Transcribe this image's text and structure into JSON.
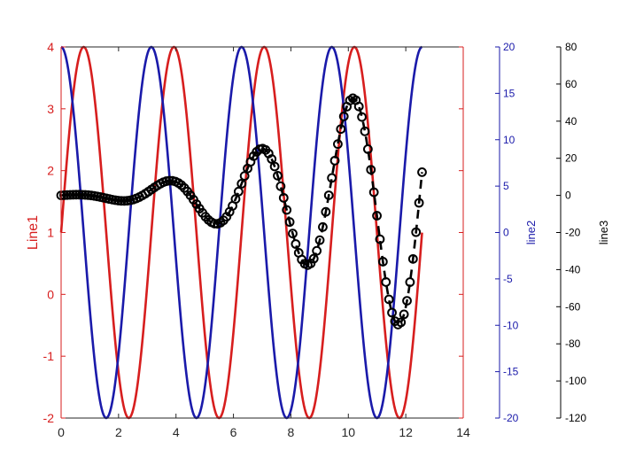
{
  "chart_data": {
    "type": "line",
    "title": "",
    "xlabel": "",
    "xlim": [
      0,
      14
    ],
    "x_ticks": [
      "0",
      "2",
      "4",
      "6",
      "8",
      "10",
      "12",
      "14"
    ],
    "grid": false,
    "legend": "none",
    "axes": [
      {
        "id": "line1",
        "label": "Line1",
        "side": "left",
        "color": "#d71e1e",
        "ylim": [
          -2,
          4
        ],
        "ticks": [
          "-2",
          "-1",
          "0",
          "1",
          "2",
          "3",
          "4"
        ]
      },
      {
        "id": "line2",
        "label": "line2",
        "side": "right",
        "color": "#1a1aaa",
        "ylim": [
          -20,
          20
        ],
        "ticks": [
          "-20",
          "-15",
          "-10",
          "-5",
          "0",
          "5",
          "10",
          "15",
          "20"
        ]
      },
      {
        "id": "line3",
        "label": "line3",
        "side": "right-outer",
        "color": "#000000",
        "ylim": [
          -120,
          80
        ],
        "ticks": [
          "-120",
          "-100",
          "-80",
          "-60",
          "-40",
          "-20",
          "0",
          "20",
          "40",
          "60",
          "80"
        ]
      }
    ],
    "series": [
      {
        "axis": "line1",
        "color": "#d71e1e",
        "style": "solid",
        "formula": "y = 1 + 3*sin(2x)",
        "x_range": [
          0,
          12.566
        ]
      },
      {
        "axis": "line2",
        "color": "#1a1aaa",
        "style": "solid",
        "formula": "y = 20*cos(2x)",
        "x_range": [
          0,
          12.566
        ]
      },
      {
        "axis": "line3",
        "color": "#000000",
        "style": "dashed",
        "marker": "circle",
        "formula": "y = x^2 * sin(2x) / 2 + x * cos(2x)",
        "x_range": [
          0,
          12.566
        ]
      }
    ]
  }
}
